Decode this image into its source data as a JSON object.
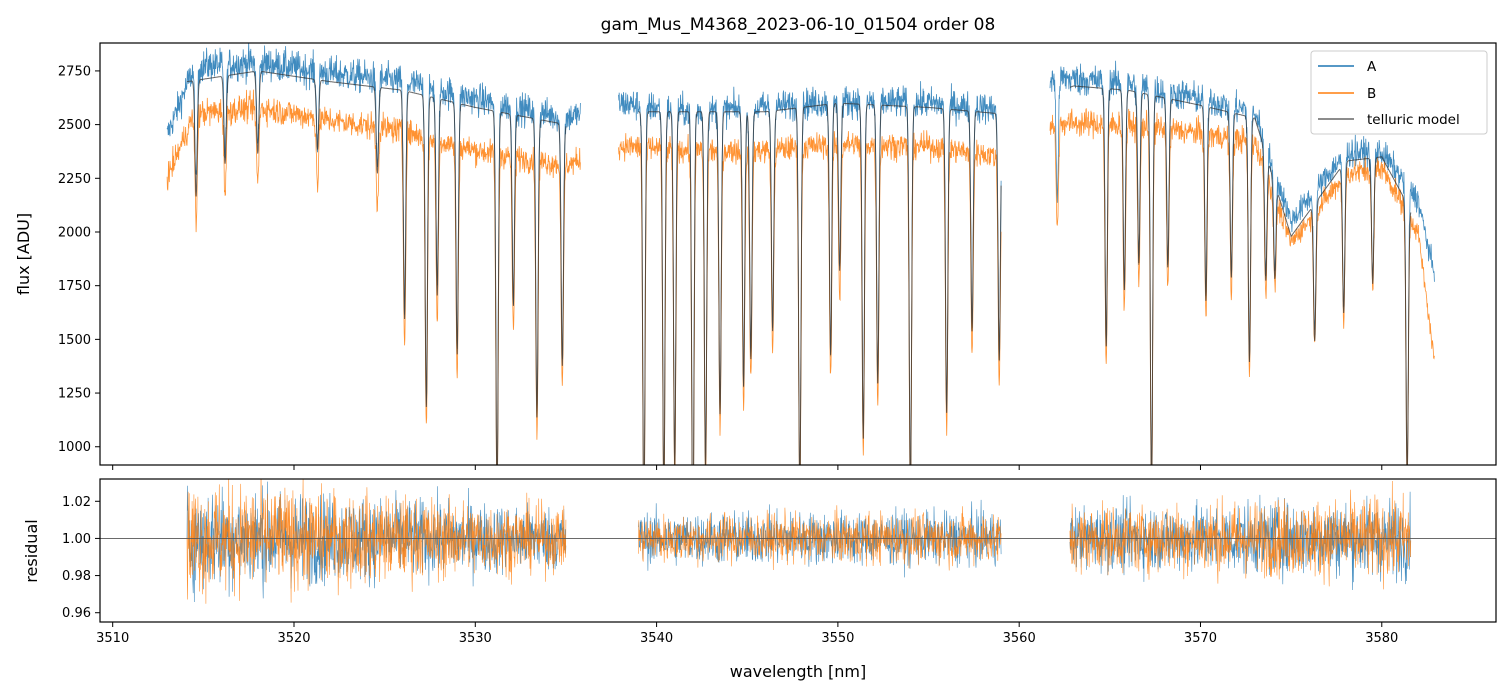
{
  "chart_data": [
    {
      "type": "line",
      "panel": "top",
      "title": "gam_Mus_M4368_2023-06-10_01504  order 08",
      "xlabel": "",
      "ylabel": "flux [ADU]",
      "xlim": [
        3509.3,
        3586.3
      ],
      "ylim": [
        915,
        2880
      ],
      "xticks": [
        3510,
        3520,
        3530,
        3540,
        3550,
        3560,
        3570,
        3580
      ],
      "yticks": [
        1000,
        1250,
        1500,
        1750,
        2000,
        2250,
        2500,
        2750
      ],
      "ytick_labels": [
        "1000",
        "1250",
        "1500",
        "1750",
        "2000",
        "2250",
        "2500",
        "2750"
      ],
      "legend_position": "top-right",
      "series": [
        {
          "name": "A",
          "color": "#1f77b4",
          "segments": [
            [
              3513.0,
              3535.8
            ],
            [
              3537.9,
              3559.0
            ],
            [
              3561.7,
              3582.9
            ]
          ],
          "levels": [
            [
              3513.0,
              2450
            ],
            [
              3514.5,
              2770
            ],
            [
              3518,
              2790
            ],
            [
              3522,
              2740
            ],
            [
              3526,
              2700
            ],
            [
              3530,
              2620
            ],
            [
              3535,
              2530
            ],
            [
              3538,
              2600
            ],
            [
              3542,
              2560
            ],
            [
              3546,
              2580
            ],
            [
              3550,
              2610
            ],
            [
              3555,
              2600
            ],
            [
              3559,
              2570
            ],
            [
              3562,
              2720
            ],
            [
              3566,
              2690
            ],
            [
              3570,
              2620
            ],
            [
              3573,
              2560
            ],
            [
              3575,
              2050
            ],
            [
              3578,
              2370
            ],
            [
              3580,
              2370
            ],
            [
              3582,
              2150
            ],
            [
              3582.9,
              1800
            ]
          ]
        },
        {
          "name": "B",
          "color": "#ff7f0e",
          "segments": [
            [
              3513.0,
              3535.8
            ],
            [
              3537.9,
              3559.0
            ],
            [
              3561.7,
              3582.9
            ]
          ],
          "levels": [
            [
              3513.0,
              2250
            ],
            [
              3514.5,
              2550
            ],
            [
              3518,
              2580
            ],
            [
              3522,
              2520
            ],
            [
              3526,
              2470
            ],
            [
              3530,
              2380
            ],
            [
              3535,
              2310
            ],
            [
              3538,
              2400
            ],
            [
              3542,
              2380
            ],
            [
              3546,
              2380
            ],
            [
              3550,
              2410
            ],
            [
              3555,
              2400
            ],
            [
              3559,
              2350
            ],
            [
              3562,
              2510
            ],
            [
              3566,
              2500
            ],
            [
              3570,
              2460
            ],
            [
              3573,
              2420
            ],
            [
              3575,
              1950
            ],
            [
              3578,
              2270
            ],
            [
              3580,
              2300
            ],
            [
              3582,
              2000
            ],
            [
              3582.9,
              1400
            ]
          ]
        },
        {
          "name": "telluric model",
          "color": "#333333",
          "segments": [
            [
              3514.1,
              3535.0
            ],
            [
              3539.0,
              3559.0
            ],
            [
              3562.8,
              3581.6
            ]
          ],
          "levels": [
            [
              3514.1,
              2700
            ],
            [
              3518,
              2750
            ],
            [
              3522,
              2700
            ],
            [
              3526,
              2660
            ],
            [
              3530,
              2580
            ],
            [
              3535,
              2500
            ],
            [
              3539,
              2560
            ],
            [
              3546,
              2560
            ],
            [
              3550,
              2600
            ],
            [
              3555,
              2580
            ],
            [
              3559,
              2550
            ],
            [
              3563,
              2680
            ],
            [
              3566,
              2660
            ],
            [
              3570,
              2590
            ],
            [
              3573,
              2530
            ],
            [
              3575,
              1980
            ],
            [
              3578,
              2330
            ],
            [
              3580,
              2350
            ],
            [
              3581.6,
              2100
            ]
          ]
        }
      ],
      "absorption_lines": [
        3514.6,
        3516.2,
        3518.0,
        3521.3,
        3524.6,
        3526.1,
        3527.3,
        3527.9,
        3529.0,
        3531.2,
        3532.1,
        3533.4,
        3534.8,
        3539.3,
        3540.4,
        3541.0,
        3542.0,
        3542.7,
        3543.5,
        3544.8,
        3545.2,
        3546.4,
        3547.9,
        3549.6,
        3550.1,
        3551.4,
        3552.2,
        3554.0,
        3556.0,
        3557.4,
        3558.9,
        3562.1,
        3564.8,
        3565.8,
        3566.6,
        3567.3,
        3568.2,
        3570.3,
        3571.7,
        3572.7,
        3573.6,
        3574.1,
        3576.3,
        3577.9,
        3579.5,
        3581.4
      ],
      "line_depths": [
        0.2,
        0.15,
        0.14,
        0.12,
        0.15,
        0.4,
        0.55,
        0.35,
        0.45,
        0.7,
        0.35,
        0.55,
        0.45,
        0.75,
        0.7,
        0.65,
        0.8,
        0.65,
        0.55,
        0.5,
        0.45,
        0.4,
        0.7,
        0.45,
        0.3,
        0.6,
        0.5,
        0.7,
        0.55,
        0.4,
        0.45,
        0.2,
        0.45,
        0.35,
        0.3,
        0.7,
        0.3,
        0.35,
        0.3,
        0.45,
        0.25,
        0.2,
        0.3,
        0.3,
        0.25,
        0.6
      ]
    },
    {
      "type": "line",
      "panel": "bottom",
      "xlabel": "wavelength [nm]",
      "ylabel": "residual",
      "xlim": [
        3509.3,
        3586.3
      ],
      "ylim": [
        0.955,
        1.032
      ],
      "xticks": [
        3510,
        3520,
        3530,
        3540,
        3550,
        3560,
        3570,
        3580
      ],
      "xtick_labels": [
        "3510",
        "3520",
        "3530",
        "3540",
        "3550",
        "3560",
        "3570",
        "3580"
      ],
      "yticks": [
        0.96,
        0.98,
        1.0,
        1.02
      ],
      "ytick_labels": [
        "0.96",
        "0.98",
        "1.00",
        "1.02"
      ],
      "reference_line": 1.0,
      "series": [
        {
          "name": "A",
          "color": "#1f77b4",
          "segments": [
            [
              3514.1,
              3535.0
            ],
            [
              3539.0,
              3559.0
            ],
            [
              3562.8,
              3581.6
            ]
          ],
          "noise": [
            [
              3514,
              0.02
            ],
            [
              3526,
              0.015
            ],
            [
              3535,
              0.012
            ],
            [
              3539,
              0.01
            ],
            [
              3559,
              0.01
            ],
            [
              3563,
              0.012
            ],
            [
              3581.6,
              0.015
            ]
          ]
        },
        {
          "name": "B",
          "color": "#ff7f0e",
          "segments": [
            [
              3514.1,
              3535.0
            ],
            [
              3539.0,
              3559.0
            ],
            [
              3562.8,
              3581.6
            ]
          ],
          "noise": [
            [
              3514,
              0.022
            ],
            [
              3526,
              0.016
            ],
            [
              3535,
              0.012
            ],
            [
              3539,
              0.009
            ],
            [
              3559,
              0.01
            ],
            [
              3563,
              0.012
            ],
            [
              3581.6,
              0.016
            ]
          ]
        }
      ]
    }
  ]
}
